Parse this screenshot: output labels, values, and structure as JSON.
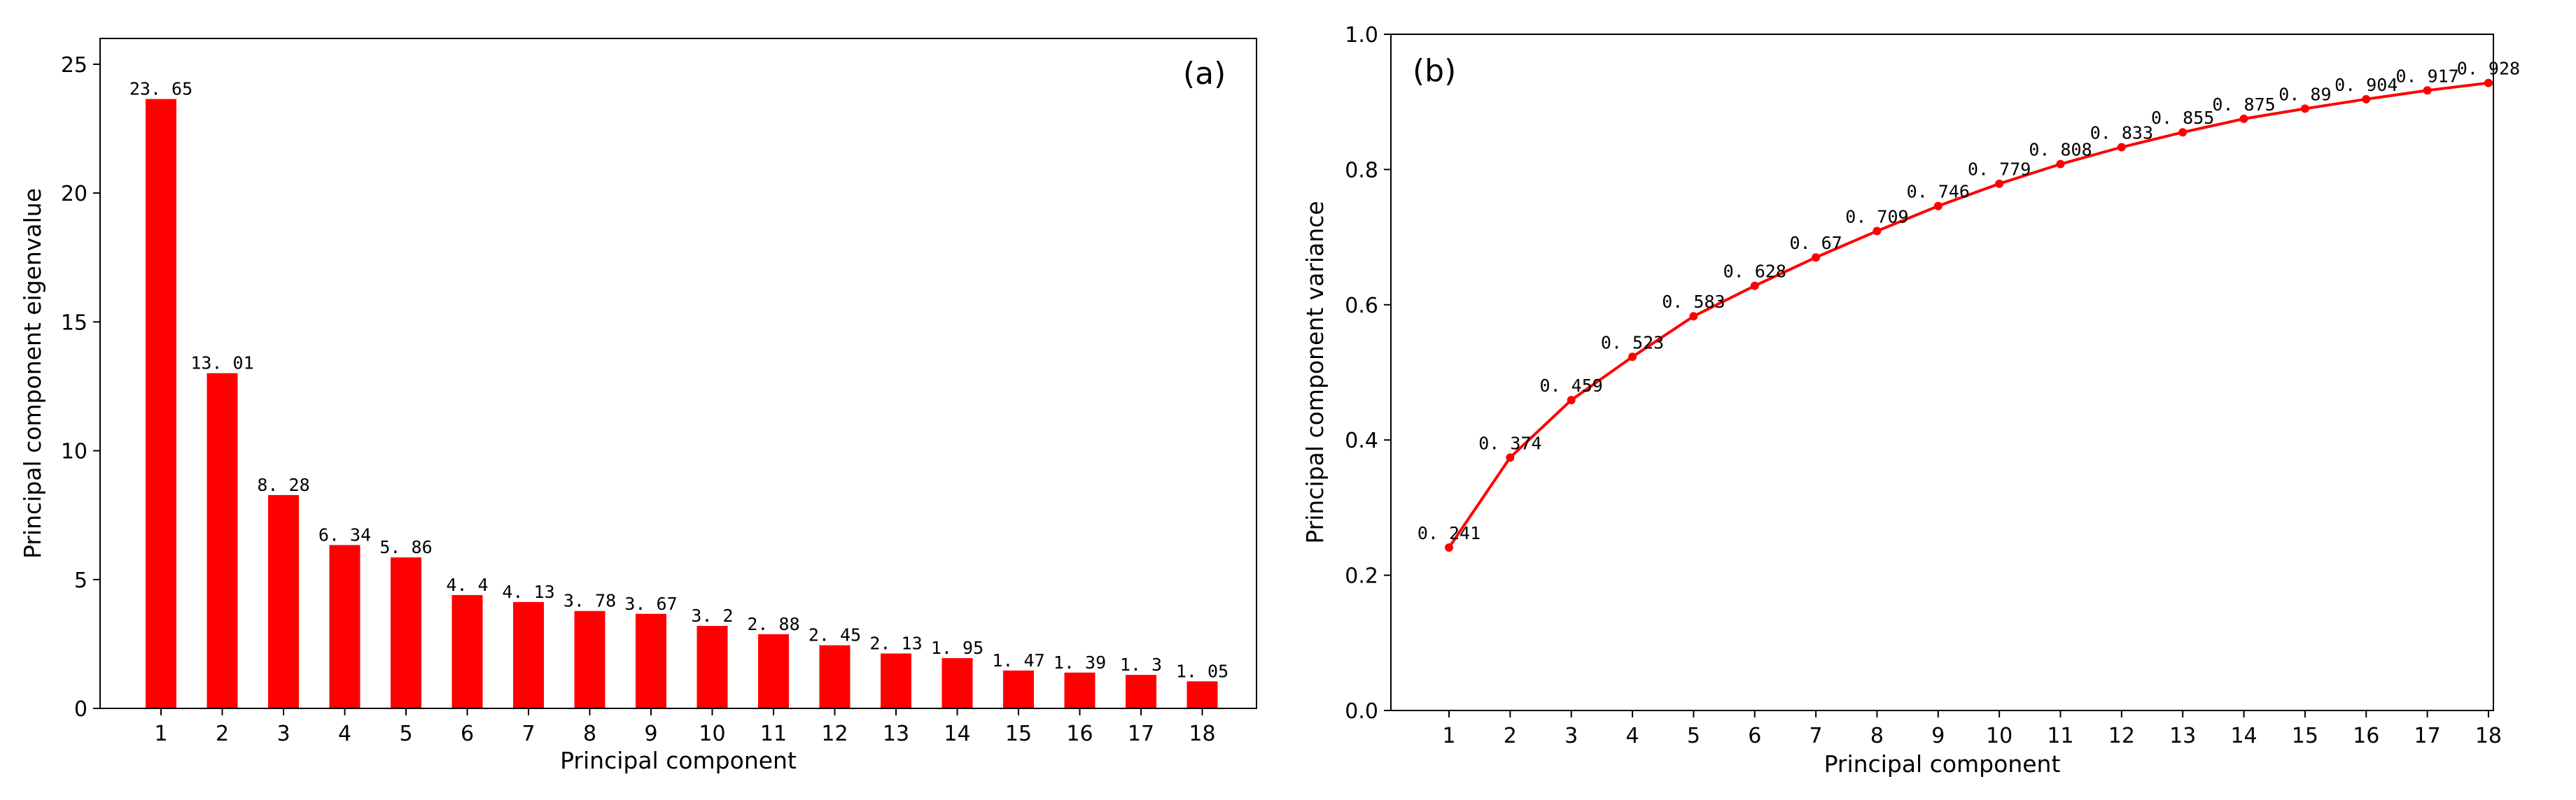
{
  "chart_data": [
    {
      "type": "bar",
      "panel_label": "(a)",
      "categories": [
        "1",
        "2",
        "3",
        "4",
        "5",
        "6",
        "7",
        "8",
        "9",
        "10",
        "11",
        "12",
        "13",
        "14",
        "15",
        "16",
        "17",
        "18"
      ],
      "values": [
        23.65,
        13.01,
        8.28,
        6.34,
        5.86,
        4.4,
        4.13,
        3.78,
        3.67,
        3.2,
        2.88,
        2.45,
        2.13,
        1.95,
        1.47,
        1.39,
        1.3,
        1.05
      ],
      "data_labels": [
        "23. 65",
        "13. 01",
        "8. 28",
        "6. 34",
        "5. 86",
        "4. 4",
        "4. 13",
        "3. 78",
        "3. 67",
        "3. 2",
        "2. 88",
        "2. 45",
        "2. 13",
        "1. 95",
        "1. 47",
        "1. 39",
        "1. 3",
        "1. 05"
      ],
      "xlabel": "Principal component",
      "ylabel": "Principal component eigenvalue",
      "ylim": [
        0,
        26
      ],
      "yticks": [
        0,
        5,
        10,
        15,
        20,
        25
      ],
      "ytick_labels": [
        "0",
        "5",
        "10",
        "15",
        "20",
        "25"
      ],
      "color": "#ff0000",
      "grid": false
    },
    {
      "type": "line",
      "panel_label": "(b)",
      "x": [
        1,
        2,
        3,
        4,
        5,
        6,
        7,
        8,
        9,
        10,
        11,
        12,
        13,
        14,
        15,
        16,
        17,
        18
      ],
      "xtick_labels": [
        "1",
        "2",
        "3",
        "4",
        "5",
        "6",
        "7",
        "8",
        "9",
        "10",
        "11",
        "12",
        "13",
        "14",
        "15",
        "16",
        "17",
        "18"
      ],
      "values": [
        0.241,
        0.374,
        0.459,
        0.523,
        0.583,
        0.628,
        0.67,
        0.709,
        0.746,
        0.779,
        0.808,
        0.833,
        0.855,
        0.875,
        0.89,
        0.904,
        0.917,
        0.928
      ],
      "data_labels": [
        "0. 241",
        "0. 374",
        "0. 459",
        "0. 523",
        "0. 583",
        "0. 628",
        "0. 67",
        "0. 709",
        "0. 746",
        "0. 779",
        "0. 808",
        "0. 833",
        "0. 855",
        "0. 875",
        "0. 89",
        "0. 904",
        "0. 917",
        "0. 928"
      ],
      "xlabel": "Principal component",
      "ylabel": "Principal component variance",
      "ylim": [
        0,
        1.0
      ],
      "yticks": [
        0,
        0.2,
        0.4,
        0.6,
        0.8,
        1.0
      ],
      "ytick_labels": [
        "0.0",
        "0.2",
        "0.4",
        "0.6",
        "0.8",
        "1.0"
      ],
      "color": "#ff0000",
      "marker": "dot",
      "grid": false
    }
  ]
}
